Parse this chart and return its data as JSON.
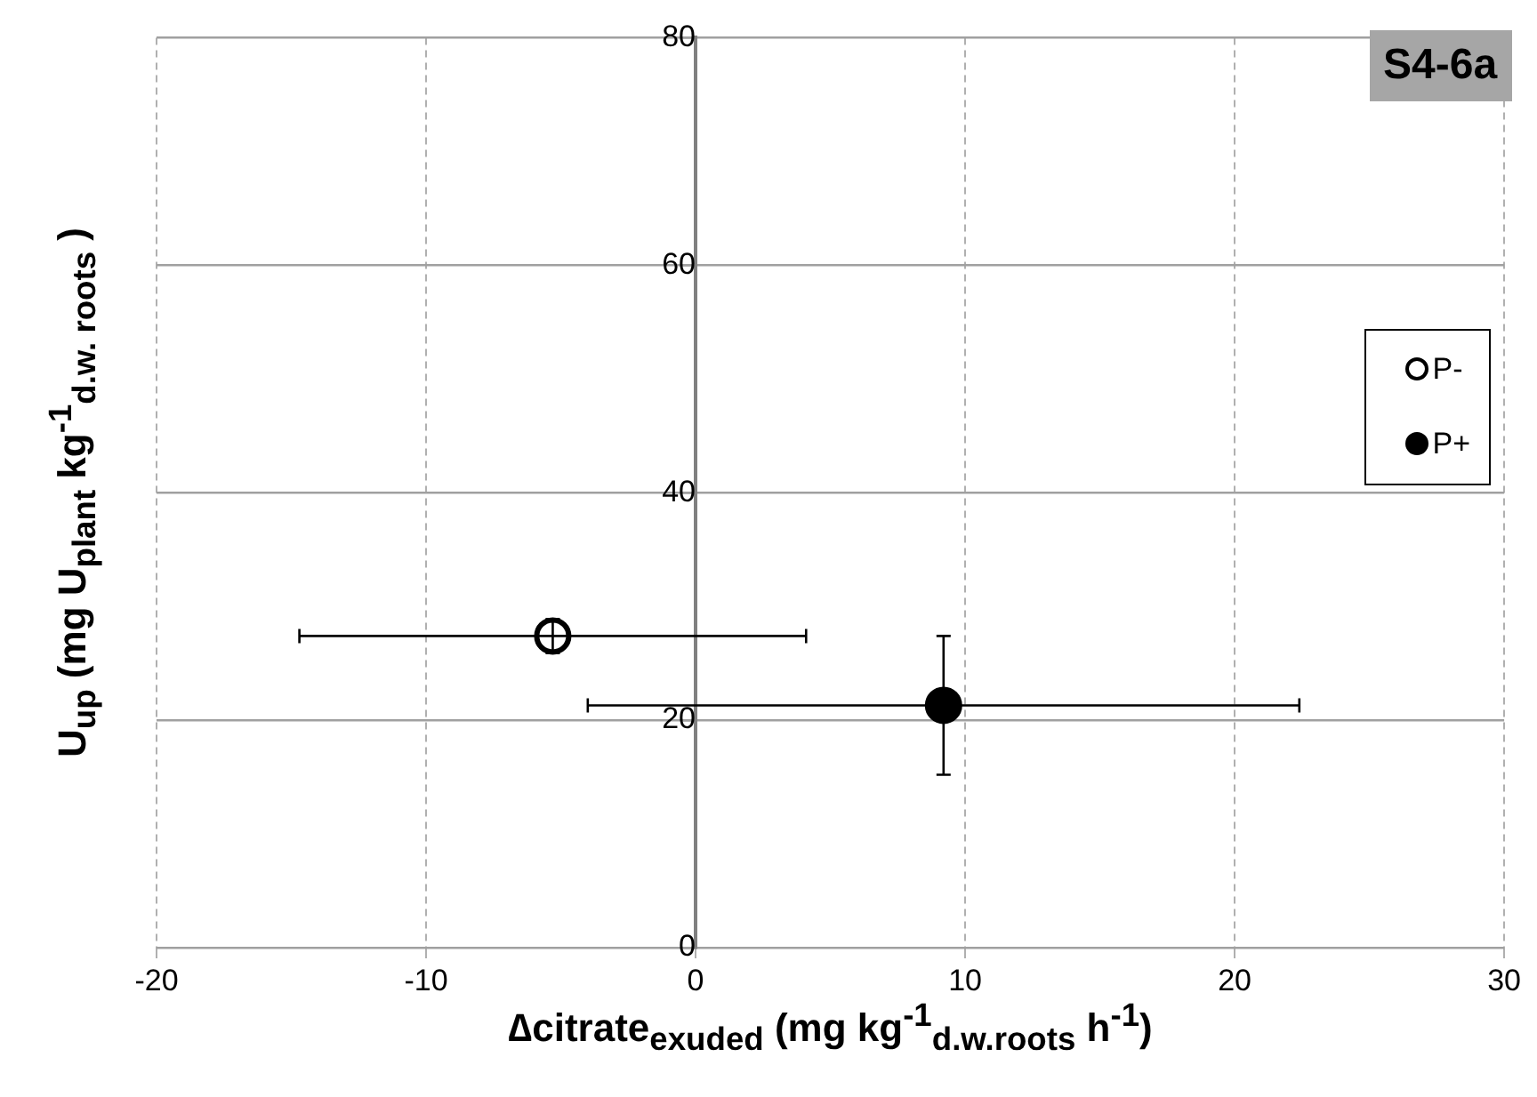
{
  "chart_data": {
    "type": "scatter",
    "xlabel": "∆citrate$_{exuded}$ (mg kg$^{-1}$$_{d.w.roots}$ h$^{-1}$)",
    "ylabel": "U$_{up}$ (mg U$_{plant}$ kg$^{-1}$$_{d.w. roots}$ )",
    "annotations": [
      "S4-6a"
    ],
    "series": [
      {
        "name": "P-",
        "color": "#ffffff",
        "x": [
          -5.3
        ],
        "values": [
          27.4
        ],
        "xerrors": [
          9.4
        ],
        "errors": [
          1.5
        ]
      },
      {
        "name": "P+",
        "color": "#000000",
        "x": [
          9.2
        ],
        "values": [
          21.3
        ],
        "xerrors": [
          13.2
        ],
        "errors": [
          6.1
        ]
      }
    ],
    "xlim": [
      -20,
      30
    ],
    "xticks": [
      -20,
      -10,
      0,
      10,
      20,
      30
    ],
    "ylim": [
      0,
      80
    ],
    "yticks": [
      0,
      20,
      40,
      60,
      80
    ],
    "grid": true,
    "legend": "right",
    "marker": "circle"
  }
}
